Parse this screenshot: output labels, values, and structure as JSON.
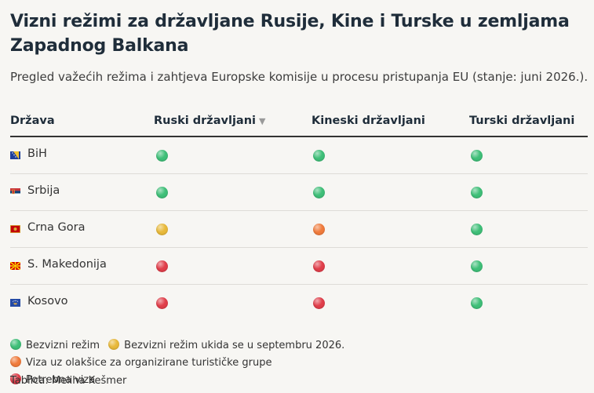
{
  "title": "Vizni režimi za državljane Rusije, Kine i Turske u zemljama Zapadnog Balkana",
  "subtitle": "Pregled važećih režima i zahtjeva Europske komisije u procesu pristupanja EU (stanje: juni 2026.).",
  "colors": {
    "green": "#3fbf78",
    "yellow": "#e8b93a",
    "orange": "#f07b3c",
    "red": "#e03e4a"
  },
  "table": {
    "headers": {
      "country": "Država",
      "russia": "Ruski državljani",
      "sort_icon": "▼",
      "china": "Kineski državljani",
      "turkey": "Turski državljani"
    },
    "rows": [
      {
        "country": "BiH",
        "flag": "bih-flag-icon",
        "russia": "green",
        "china": "green",
        "turkey": "green"
      },
      {
        "country": "Srbija",
        "flag": "serbia-flag-icon",
        "russia": "green",
        "china": "green",
        "turkey": "green"
      },
      {
        "country": "Crna Gora",
        "flag": "montenegro-flag-icon",
        "russia": "yellow",
        "china": "orange",
        "turkey": "green"
      },
      {
        "country": "S. Makedonija",
        "flag": "north-macedonia-flag-icon",
        "russia": "red",
        "china": "red",
        "turkey": "green"
      },
      {
        "country": "Kosovo",
        "flag": "kosovo-flag-icon",
        "russia": "red",
        "china": "red",
        "turkey": "green"
      }
    ]
  },
  "legend": [
    {
      "status": "green",
      "label": "Bezvizni režim"
    },
    {
      "status": "yellow",
      "label": "Bezvizni režim ukida se u septembru 2026."
    },
    {
      "status": "orange",
      "label": "Viza uz olakšice za organizirane turističke grupe"
    },
    {
      "status": "red",
      "label": "Potrebna viza"
    }
  ],
  "source": "Tablica: Meliha Kešmer"
}
